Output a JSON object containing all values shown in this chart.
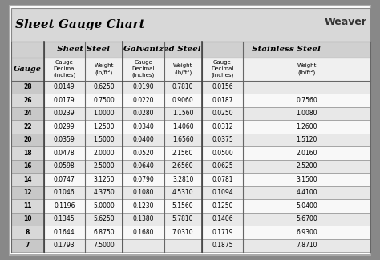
{
  "title": "Sheet Gauge Chart",
  "background_outer": "#888888",
  "background_inner": "#ffffff",
  "header_bg": "#cccccc",
  "row_bg_odd": "#e8e8e8",
  "row_bg_even": "#f8f8f8",
  "col_headers": [
    "Sheet Steel",
    "Galvanized Steel",
    "Stainless Steel"
  ],
  "sub_headers": [
    "Gauge\nDecimal\n(inches)",
    "Weight\n(lb/ft²)",
    "Gauge\nDecimal\n(inches)",
    "Weight\n(lb/ft²)",
    "Gauge\nDecimal\n(inches)",
    "Weight\n(lb/ft²)"
  ],
  "gauges": [
    "28",
    "26",
    "24",
    "22",
    "20",
    "18",
    "16",
    "14",
    "12",
    "11",
    "10",
    "8",
    "7"
  ],
  "sheet_steel": [
    [
      "0.0149",
      "0.6250"
    ],
    [
      "0.0179",
      "0.7500"
    ],
    [
      "0.0239",
      "1.0000"
    ],
    [
      "0.0299",
      "1.2500"
    ],
    [
      "0.0359",
      "1.5000"
    ],
    [
      "0.0478",
      "2.0000"
    ],
    [
      "0.0598",
      "2.5000"
    ],
    [
      "0.0747",
      "3.1250"
    ],
    [
      "0.1046",
      "4.3750"
    ],
    [
      "0.1196",
      "5.0000"
    ],
    [
      "0.1345",
      "5.6250"
    ],
    [
      "0.1644",
      "6.8750"
    ],
    [
      "0.1793",
      "7.5000"
    ]
  ],
  "galvanized_steel": [
    [
      "0.0190",
      "0.7810"
    ],
    [
      "0.0220",
      "0.9060"
    ],
    [
      "0.0280",
      "1.1560"
    ],
    [
      "0.0340",
      "1.4060"
    ],
    [
      "0.0400",
      "1.6560"
    ],
    [
      "0.0520",
      "2.1560"
    ],
    [
      "0.0640",
      "2.6560"
    ],
    [
      "0.0790",
      "3.2810"
    ],
    [
      "0.1080",
      "4.5310"
    ],
    [
      "0.1230",
      "5.1560"
    ],
    [
      "0.1380",
      "5.7810"
    ],
    [
      "0.1680",
      "7.0310"
    ],
    [
      "",
      ""
    ]
  ],
  "stainless_steel": [
    [
      "0.0156",
      ""
    ],
    [
      "0.0187",
      "0.7560"
    ],
    [
      "0.0250",
      "1.0080"
    ],
    [
      "0.0312",
      "1.2600"
    ],
    [
      "0.0375",
      "1.5120"
    ],
    [
      "0.0500",
      "2.0160"
    ],
    [
      "0.0625",
      "2.5200"
    ],
    [
      "0.0781",
      "3.1500"
    ],
    [
      "0.1094",
      "4.4100"
    ],
    [
      "0.1250",
      "5.0400"
    ],
    [
      "0.1406",
      "5.6700"
    ],
    [
      "0.1719",
      "6.9300"
    ],
    [
      "0.1875",
      "7.8710"
    ]
  ]
}
